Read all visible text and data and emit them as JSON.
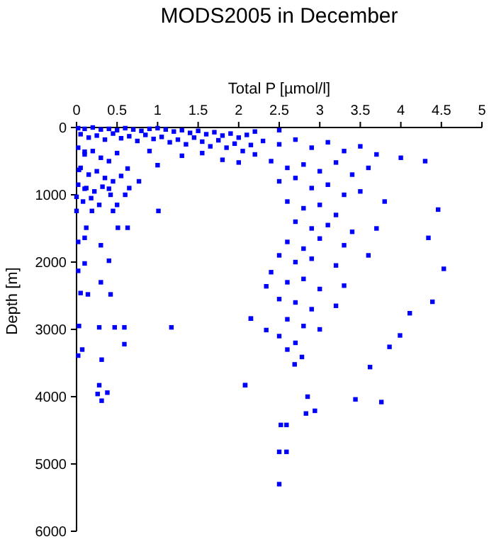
{
  "chart_data": {
    "type": "scatter",
    "title": "MODS2005 in December",
    "xlabel": "Total P [µmol/l]",
    "ylabel": "Depth [m]",
    "xlim": [
      0,
      5
    ],
    "xticks": [
      0,
      0.5,
      1,
      1.5,
      2,
      2.5,
      3,
      3.5,
      4,
      4.5,
      5
    ],
    "ylim": [
      6000,
      0
    ],
    "yticks": [
      0,
      1000,
      2000,
      3000,
      4000,
      5000,
      6000
    ],
    "grid": false,
    "marker": "square",
    "series": [
      {
        "color": "#0000ff",
        "x": [
          2.5,
          4.53,
          4.39,
          4.34,
          4.3,
          4.46,
          4.11,
          3.99,
          3.86,
          3.76,
          3.44,
          3.62,
          2.85,
          2.83,
          2.94,
          2.52,
          2.59,
          2.5,
          2.59,
          2.5,
          2.15,
          2.08,
          2.69,
          2.78,
          2.34,
          2.15,
          2.34,
          2.08,
          1.17,
          1.01,
          0.63,
          0.77,
          0.02,
          0.05,
          0.03,
          0.02,
          0.07,
          0.28,
          0.47,
          0.59,
          0.59,
          0.31,
          0.28,
          0.26,
          0.31,
          0.38,
          0.3,
          0.42,
          0.14,
          0.4,
          0.1,
          0.3,
          0.1,
          0.51,
          0.63,
          0.12,
          0.02,
          0.45,
          0.19,
          0,
          0,
          0.1,
          0.4,
          0.03,
          0.1,
          0.02,
          0.1,
          0.2,
          0.3,
          0.4,
          0.5,
          0.6,
          0.7,
          0.8,
          0.9,
          1.0,
          1.1,
          1.2,
          1.3,
          1.4,
          1.5,
          1.6,
          1.7,
          1.8,
          1.9,
          2.0,
          2.1,
          2.2,
          0.05,
          0.15,
          0.25,
          0.35,
          0.45,
          0.55,
          0.65,
          0.75,
          0.85,
          0.95,
          1.05,
          1.15,
          1.25,
          1.35,
          1.45,
          1.55,
          1.65,
          1.75,
          1.85,
          1.95,
          2.05,
          2.15,
          1.3,
          1.0,
          1.8,
          2.0,
          1.55,
          2.2,
          0.9,
          0.02,
          0.1,
          0.2,
          0.3,
          0.4,
          0.5,
          0.05,
          0.15,
          0.25,
          0.35,
          0.45,
          0.55,
          0.02,
          0.12,
          0.22,
          0.32,
          0.42,
          0.08,
          0.18,
          0.28,
          0.5,
          0.6,
          0.65,
          2.3,
          2.5,
          2.7,
          2.9,
          3.1,
          3.3,
          3.5,
          3.7,
          4.0,
          2.4,
          2.6,
          2.8,
          3.0,
          3.2,
          3.4,
          3.6,
          2.5,
          2.7,
          2.9,
          3.1,
          3.3,
          3.5,
          3.8,
          2.6,
          2.8,
          3.0,
          3.2,
          2.7,
          2.9,
          3.1,
          3.4,
          3.7,
          2.6,
          2.8,
          3.0,
          3.3,
          2.5,
          2.7,
          2.9,
          3.2,
          3.6,
          2.4,
          2.6,
          2.8,
          3.0,
          3.3,
          2.5,
          2.7,
          2.9,
          3.2,
          2.6,
          2.8,
          3.0,
          2.5,
          2.7,
          2.6
        ],
        "values": [
          40,
          2100,
          2590,
          1640,
          500,
          1220,
          2760,
          3090,
          3260,
          4080,
          4040,
          3560,
          4000,
          4250,
          4210,
          4420,
          4420,
          4820,
          4820,
          5300,
          2840,
          3830,
          3520,
          3410,
          2360,
          2840,
          3010,
          3830,
          2970,
          1240,
          610,
          800,
          2130,
          2460,
          2950,
          3390,
          3300,
          2970,
          2970,
          2970,
          3220,
          3450,
          3830,
          3960,
          4060,
          3940,
          2300,
          2480,
          2480,
          1980,
          2020,
          1750,
          1640,
          1490,
          1490,
          1490,
          1700,
          1240,
          1240,
          1240,
          1030,
          910,
          910,
          630,
          360,
          10,
          20,
          0,
          30,
          20,
          40,
          10,
          30,
          50,
          20,
          10,
          30,
          60,
          40,
          80,
          50,
          100,
          70,
          120,
          90,
          150,
          110,
          60,
          100,
          150,
          120,
          180,
          90,
          160,
          130,
          200,
          110,
          170,
          140,
          220,
          180,
          250,
          150,
          210,
          280,
          190,
          300,
          240,
          350,
          260,
          420,
          560,
          480,
          520,
          380,
          400,
          350,
          300,
          400,
          350,
          450,
          500,
          380,
          600,
          700,
          650,
          750,
          800,
          720,
          850,
          900,
          950,
          880,
          1000,
          1100,
          1050,
          1150,
          1150,
          1000,
          900,
          200,
          250,
          180,
          300,
          220,
          350,
          280,
          400,
          450,
          500,
          600,
          550,
          650,
          520,
          700,
          600,
          800,
          750,
          900,
          850,
          1000,
          950,
          1100,
          1100,
          1200,
          1150,
          1300,
          1400,
          1500,
          1450,
          1550,
          1500,
          1700,
          1800,
          1650,
          1750,
          1900,
          2000,
          1950,
          2050,
          1900,
          2150,
          2300,
          2250,
          2400,
          2350,
          2550,
          2600,
          2700,
          2650,
          2850,
          2950,
          3000,
          3100,
          3200,
          3300
        ]
      }
    ]
  }
}
